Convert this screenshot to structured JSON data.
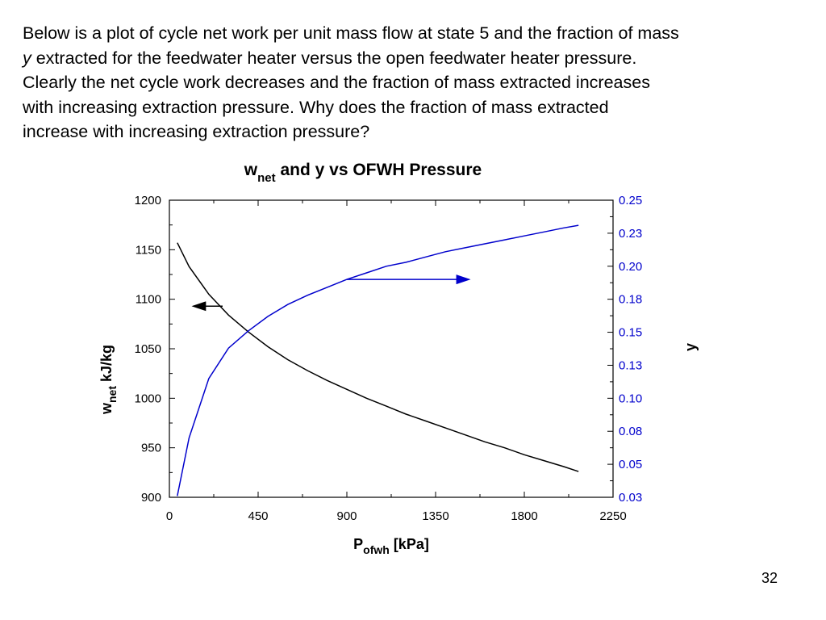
{
  "intro": {
    "line1": "Below is a plot of cycle net work per unit mass flow at state 5 and the fraction of mass",
    "line2_y": "y",
    "line2_rest": " extracted for the feedwater heater versus the open feedwater heater pressure.",
    "line3": "Clearly the net cycle work decreases and the fraction of mass extracted increases",
    "line4": "with increasing extraction pressure.  Why does the fraction of mass extracted",
    "line5": "increase with increasing extraction pressure?"
  },
  "page_number": "32",
  "colors": {
    "wnet": "#000000",
    "y": "#0000cc",
    "axis": "#000000"
  },
  "chart_data": {
    "type": "line",
    "title_w": "w",
    "title_sub": "net",
    "title_rest": " and y vs OFWH Pressure",
    "xlabel_main": "P",
    "xlabel_sub": "ofwh",
    "xlabel_unit": "  [kPa]",
    "ylabel_left_main": "w",
    "ylabel_left_sub": "net",
    "ylabel_left_unit": "  kJ/kg",
    "ylabel_right": "y",
    "xlim": [
      0,
      2250
    ],
    "ylim_left": [
      900,
      1200
    ],
    "ylim_right": [
      0.025,
      0.25
    ],
    "x_ticks": [
      "0",
      "450",
      "900",
      "1350",
      "1800",
      "2250"
    ],
    "y_left_ticks": [
      "1200",
      "1150",
      "1100",
      "1050",
      "1000",
      "950",
      "900"
    ],
    "y_right_ticks": [
      "0.25",
      "0.23",
      "0.20",
      "0.18",
      "0.15",
      "0.13",
      "0.10",
      "0.08",
      "0.05",
      "0.03"
    ],
    "series": [
      {
        "axis": "left",
        "x": [
          40,
          100,
          200,
          300,
          400,
          500,
          600,
          700,
          800,
          900,
          1000,
          1100,
          1200,
          1300,
          1400,
          1500,
          1600,
          1700,
          1800,
          1900,
          2000,
          2075
        ],
        "y": [
          1157,
          1133,
          1105,
          1084,
          1067,
          1052,
          1039,
          1028,
          1018,
          1009,
          1000,
          992,
          984,
          977,
          970,
          963,
          956,
          950,
          943,
          937,
          931,
          926
        ]
      },
      {
        "axis": "right",
        "x": [
          40,
          100,
          200,
          300,
          400,
          500,
          600,
          700,
          800,
          900,
          1000,
          1100,
          1200,
          1300,
          1400,
          1500,
          1600,
          1700,
          1800,
          1900,
          2000,
          2075
        ],
        "y": [
          0.026,
          0.07,
          0.115,
          0.138,
          0.151,
          0.162,
          0.171,
          0.178,
          0.184,
          0.19,
          0.195,
          0.2,
          0.203,
          0.207,
          0.211,
          0.214,
          0.217,
          0.22,
          0.223,
          0.226,
          0.229,
          0.231
        ]
      }
    ],
    "arrows": [
      {
        "axis": "left",
        "from_x": 270,
        "to_x": 120,
        "y": 1093
      },
      {
        "axis": "right",
        "from_x": 900,
        "to_x": 1520,
        "y": 0.19
      }
    ]
  }
}
